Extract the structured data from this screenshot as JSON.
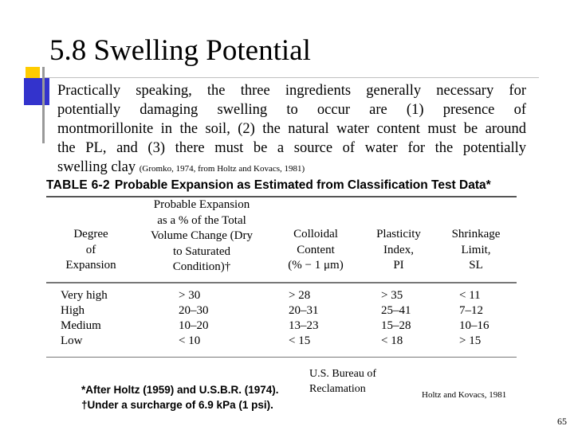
{
  "slide": {
    "title": "5.8 Swelling Potential",
    "page_number": "65"
  },
  "body": {
    "lines": [
      "Practically speaking, the three ingredients generally necessary for",
      "potentially damaging swelling to occur are (1) presence of",
      "montmorillonite in the soil, (2) the natural water content must be around",
      "the PL, and (3) there must be a source of water for the potentially"
    ],
    "last_line": "swelling clay",
    "citation": "(Gromko, 1974, from Holtz and Kovacs, 1981)"
  },
  "table": {
    "label": "TABLE 6-2",
    "title": "Probable Expansion as Estimated from Classification Test Data*",
    "headers": {
      "degree": [
        "Degree",
        "of",
        "Expansion"
      ],
      "volume": [
        "Probable Expansion",
        "as a % of the Total",
        "Volume Change (Dry",
        "to Saturated",
        "Condition)†"
      ],
      "colloidal": [
        "Colloidal",
        "Content",
        "(% − 1 μm)"
      ],
      "plasticity": [
        "Plasticity",
        "Index,",
        "PI"
      ],
      "shrinkage": [
        "Shrinkage",
        "Limit,",
        "SL"
      ]
    },
    "rows": [
      {
        "degree": "Very high",
        "volume": "> 30",
        "colloidal": "> 28",
        "plasticity": "> 35",
        "shrinkage": "< 11"
      },
      {
        "degree": "High",
        "volume": "20–30",
        "colloidal": "20–31",
        "plasticity": "25–41",
        "shrinkage": "7–12"
      },
      {
        "degree": "Medium",
        "volume": "10–20",
        "colloidal": "13–23",
        "plasticity": "15–28",
        "shrinkage": "10–16"
      },
      {
        "degree": "Low",
        "volume": "< 10",
        "colloidal": "< 15",
        "plasticity": "< 18",
        "shrinkage": "> 15"
      }
    ],
    "footnotes": [
      "*After Holtz (1959) and U.S.B.R. (1974).",
      "†Under a surcharge of 6.9 kPa (1 psi)."
    ]
  },
  "credits": {
    "usbr": [
      "U.S. Bureau of",
      "Reclamation"
    ],
    "holtz": "Holtz and Kovacs, 1981"
  }
}
